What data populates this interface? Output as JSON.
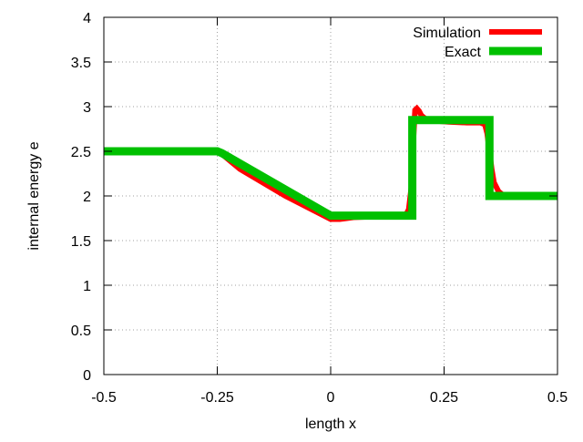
{
  "chart_data": {
    "type": "line",
    "xlabel": "length x",
    "ylabel": "internal energy e",
    "xlim": [
      -0.5,
      0.5
    ],
    "ylim": [
      0,
      4
    ],
    "xticks": [
      -0.5,
      -0.25,
      0,
      0.25,
      0.5
    ],
    "xtick_labels": [
      "-0.5",
      "-0.25",
      "0",
      "0.25",
      "0.5"
    ],
    "yticks": [
      0,
      0.5,
      1,
      1.5,
      2,
      2.5,
      3,
      3.5,
      4
    ],
    "ytick_labels": [
      "0",
      "0.5",
      "1",
      "1.5",
      "2",
      "2.5",
      "3",
      "3.5",
      "4"
    ],
    "grid": true,
    "legend_position": "top-right",
    "series": [
      {
        "name": "Simulation",
        "color": "#ff0000",
        "x": [
          -0.5,
          -0.26,
          -0.25,
          -0.24,
          -0.2,
          -0.1,
          0.0,
          0.02,
          0.05,
          0.1,
          0.15,
          0.165,
          0.172,
          0.178,
          0.182,
          0.186,
          0.19,
          0.195,
          0.2,
          0.21,
          0.23,
          0.26,
          0.3,
          0.33,
          0.34,
          0.345,
          0.35,
          0.355,
          0.36,
          0.37,
          0.38,
          0.4,
          0.5
        ],
        "values": [
          2.5,
          2.5,
          2.49,
          2.47,
          2.3,
          2.0,
          1.74,
          1.74,
          1.76,
          1.77,
          1.77,
          1.78,
          1.85,
          2.1,
          2.6,
          2.96,
          2.98,
          2.95,
          2.9,
          2.86,
          2.84,
          2.83,
          2.82,
          2.82,
          2.8,
          2.7,
          2.5,
          2.3,
          2.15,
          2.05,
          2.01,
          2.0,
          2.0
        ]
      },
      {
        "name": "Exact",
        "color": "#00c000",
        "x": [
          -0.5,
          -0.25,
          -0.24,
          0.0,
          0.18,
          0.18,
          0.35,
          0.35,
          0.5
        ],
        "values": [
          2.5,
          2.5,
          2.48,
          1.78,
          1.78,
          2.85,
          2.85,
          2.0,
          2.0
        ]
      }
    ]
  }
}
